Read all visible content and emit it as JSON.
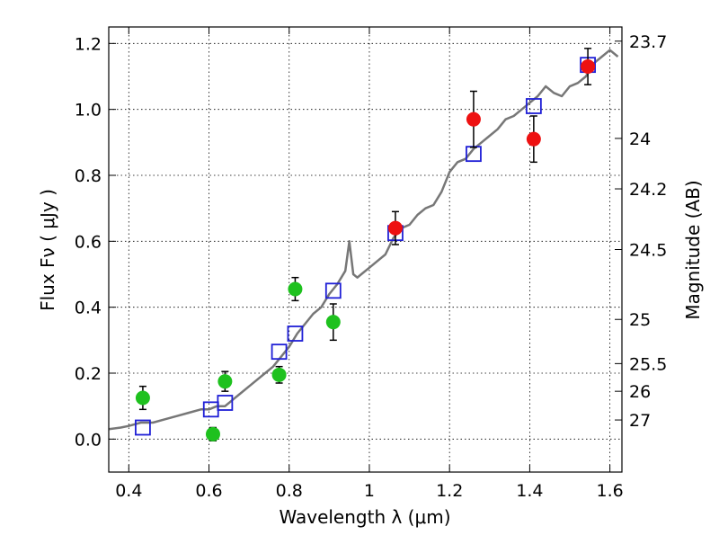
{
  "chart_data": {
    "type": "scatter",
    "xlabel": "Wavelength  λ (μm)",
    "ylabel": "Flux  Fν  ( μJy )",
    "ylabel_right": "Magnitude (AB)",
    "xlim": [
      0.35,
      1.63
    ],
    "ylim": [
      -0.1,
      1.25
    ],
    "grid": true,
    "x_ticks": [
      {
        "v": 0.4,
        "label": "0.4"
      },
      {
        "v": 0.6,
        "label": "0.6"
      },
      {
        "v": 0.8,
        "label": "0.8"
      },
      {
        "v": 1.0,
        "label": "1"
      },
      {
        "v": 1.2,
        "label": "1.2"
      },
      {
        "v": 1.4,
        "label": "1.4"
      },
      {
        "v": 1.6,
        "label": "1.6"
      }
    ],
    "y_ticks": [
      {
        "v": 0.0,
        "label": "0.0"
      },
      {
        "v": 0.2,
        "label": "0.2"
      },
      {
        "v": 0.4,
        "label": "0.4"
      },
      {
        "v": 0.6,
        "label": "0.6"
      },
      {
        "v": 0.8,
        "label": "0.8"
      },
      {
        "v": 1.0,
        "label": "1.0"
      },
      {
        "v": 1.2,
        "label": "1.2"
      }
    ],
    "mag_ticks": [
      {
        "label": "23.7",
        "flux": 1.207
      },
      {
        "label": "24",
        "flux": 0.912
      },
      {
        "label": "24.2",
        "flux": 0.759
      },
      {
        "label": "24.5",
        "flux": 0.575
      },
      {
        "label": "25",
        "flux": 0.363
      },
      {
        "label": "25.5",
        "flux": 0.229
      },
      {
        "label": "26",
        "flux": 0.145
      },
      {
        "label": "27",
        "flux": 0.058
      }
    ],
    "series": [
      {
        "kind": "line",
        "color": "#777777",
        "x": [
          0.35,
          0.38,
          0.4,
          0.43,
          0.46,
          0.49,
          0.52,
          0.55,
          0.58,
          0.6,
          0.62,
          0.64,
          0.66,
          0.68,
          0.7,
          0.72,
          0.74,
          0.76,
          0.78,
          0.8,
          0.82,
          0.84,
          0.86,
          0.88,
          0.9,
          0.92,
          0.94,
          0.95,
          0.955,
          0.96,
          0.97,
          0.98,
          1.0,
          1.02,
          1.04,
          1.06,
          1.08,
          1.1,
          1.12,
          1.14,
          1.16,
          1.18,
          1.2,
          1.22,
          1.24,
          1.26,
          1.28,
          1.3,
          1.32,
          1.34,
          1.36,
          1.38,
          1.4,
          1.42,
          1.44,
          1.46,
          1.48,
          1.5,
          1.52,
          1.54,
          1.56,
          1.58,
          1.6,
          1.62
        ],
        "y": [
          0.03,
          0.035,
          0.04,
          0.05,
          0.05,
          0.06,
          0.07,
          0.08,
          0.09,
          0.09,
          0.1,
          0.1,
          0.12,
          0.14,
          0.16,
          0.18,
          0.2,
          0.22,
          0.25,
          0.28,
          0.32,
          0.35,
          0.38,
          0.4,
          0.44,
          0.47,
          0.51,
          0.6,
          0.55,
          0.5,
          0.49,
          0.5,
          0.52,
          0.54,
          0.56,
          0.61,
          0.64,
          0.65,
          0.68,
          0.7,
          0.71,
          0.75,
          0.81,
          0.84,
          0.85,
          0.88,
          0.9,
          0.92,
          0.94,
          0.97,
          0.98,
          1.0,
          1.02,
          1.04,
          1.07,
          1.05,
          1.04,
          1.07,
          1.08,
          1.1,
          1.14,
          1.16,
          1.18,
          1.16
        ]
      },
      {
        "kind": "points",
        "marker": "open-square",
        "color": "#1f1fd6",
        "x": [
          0.435,
          0.605,
          0.64,
          0.775,
          0.815,
          0.91,
          1.065,
          1.26,
          1.41,
          1.545
        ],
        "y": [
          0.035,
          0.09,
          0.11,
          0.265,
          0.32,
          0.45,
          0.625,
          0.865,
          1.01,
          1.135
        ]
      },
      {
        "kind": "points",
        "marker": "filled-circle",
        "color": "#1ec11e",
        "x": [
          0.435,
          0.61,
          0.64,
          0.775,
          0.815,
          0.91
        ],
        "y": [
          0.125,
          0.015,
          0.175,
          0.195,
          0.455,
          0.355
        ],
        "yerr": [
          0.035,
          0.02,
          0.03,
          0.025,
          0.035,
          0.055
        ]
      },
      {
        "kind": "points",
        "marker": "filled-circle",
        "color": "#ee1111",
        "x": [
          1.065,
          1.26,
          1.41,
          1.545
        ],
        "y": [
          0.64,
          0.97,
          0.91,
          1.13
        ],
        "yerr": [
          0.05,
          0.085,
          0.07,
          0.055
        ]
      }
    ]
  }
}
